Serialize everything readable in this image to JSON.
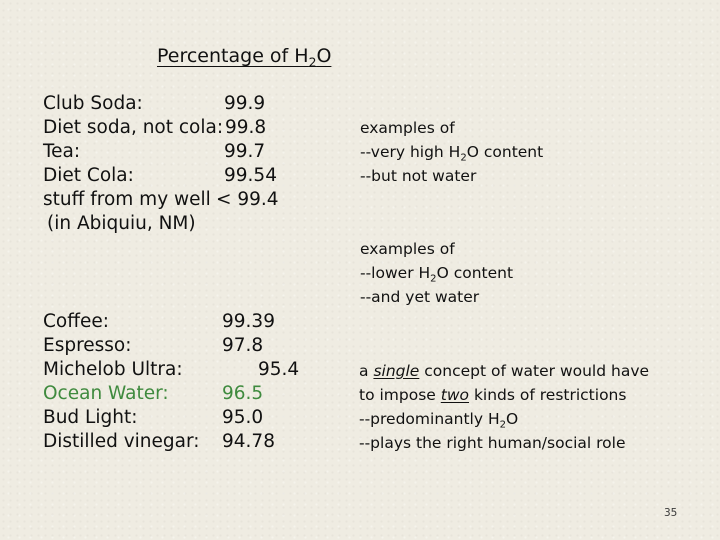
{
  "title": {
    "pre": "Percentage of H",
    "sub": "2",
    "post": "O"
  },
  "group1": [
    {
      "label": "Club Soda:",
      "value": "99.9"
    },
    {
      "label": "Diet soda, not cola:",
      "value": "99.8"
    },
    {
      "label": "Tea:",
      "value": "99.7"
    },
    {
      "label": "Diet Cola:",
      "value": "99.54"
    },
    {
      "label": "stuff from my well",
      "value": "< 99.4"
    }
  ],
  "group1_note": "(in Abiquiu, NM)",
  "group2": [
    {
      "label": "Coffee:",
      "value": "99.39"
    },
    {
      "label": "Espresso:",
      "value": "97.8"
    },
    {
      "label": "Michelob Ultra:",
      "value": "95.4"
    },
    {
      "label": "Ocean Water:",
      "value": "96.5"
    },
    {
      "label": "Bud Light:",
      "value": "95.0"
    },
    {
      "label": "Distilled vinegar:",
      "value": "94.78"
    }
  ],
  "colors": {
    "ocean_water": "#3f8a3e",
    "text": "#111111",
    "background": "#efece2"
  },
  "note1": {
    "line1": "examples of",
    "line2_pre": "--very high H",
    "line2_sub": "2",
    "line2_post": "O content",
    "line3": "--but not water"
  },
  "note2": {
    "line1": "examples of",
    "line2_pre": "--lower H",
    "line2_sub": "2",
    "line2_post": "O content",
    "line3": "--and yet water"
  },
  "note3": {
    "line1_pre": "a ",
    "line1_em": "single",
    "line1_post": " concept of water would have",
    "line2_pre": "to impose ",
    "line2_em": "two",
    "line2_post": " kinds of restrictions",
    "line3_pre": "--predominantly H",
    "line3_sub": "2",
    "line3_post": "O",
    "line4": "--plays the right human/social role"
  },
  "page_number": "35"
}
